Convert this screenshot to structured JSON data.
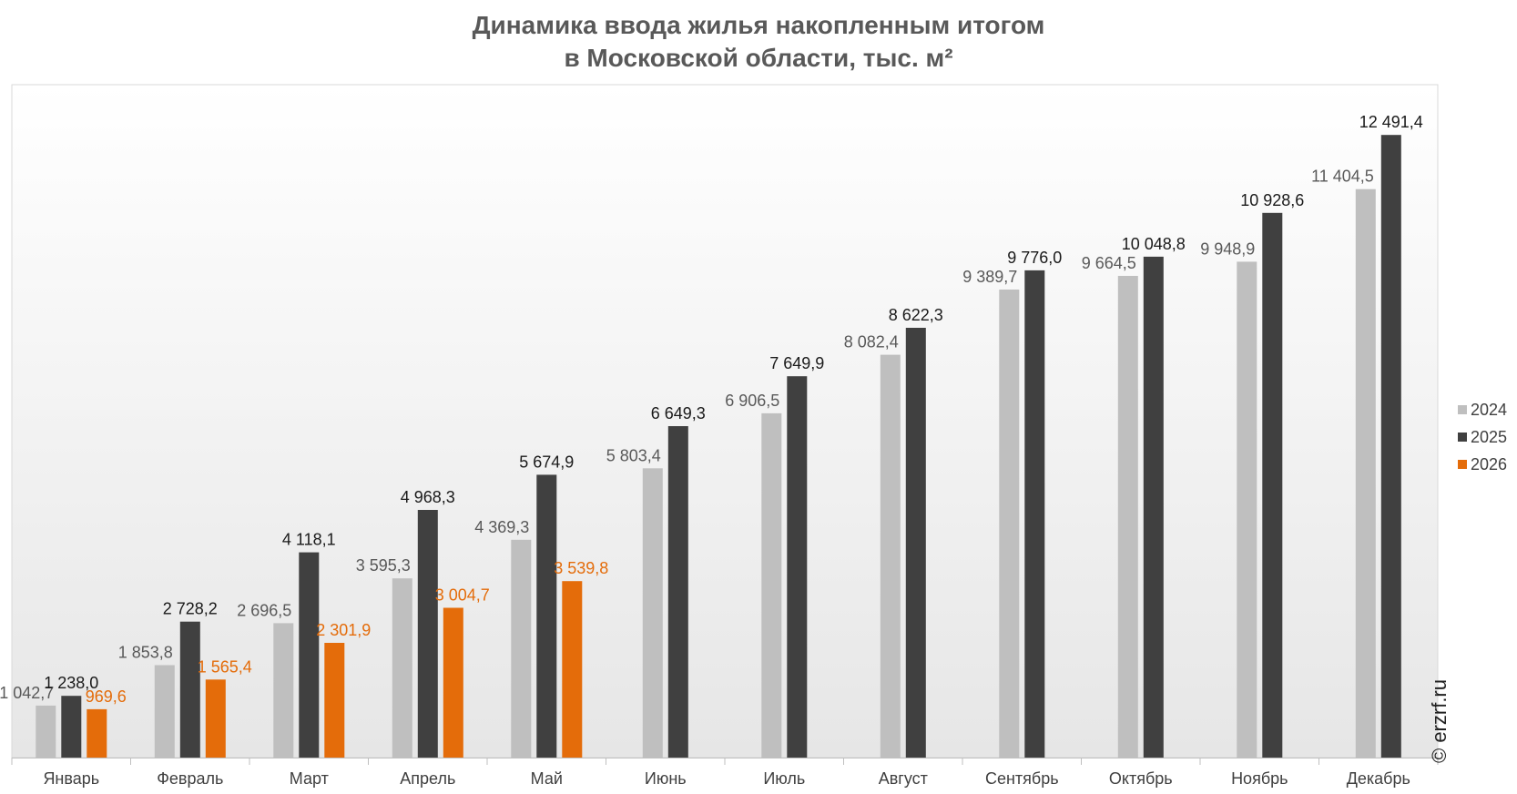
{
  "title": {
    "line1": "Динамика ввода жилья накопленным итогом",
    "line2": "в Московской области, тыс. м²"
  },
  "copyright": "© erzrf.ru",
  "chart_data": {
    "type": "bar",
    "title": "Динамика ввода жилья накопленным итогом в Московской области, тыс. м²",
    "categories": [
      "Январь",
      "Февраль",
      "Март",
      "Апрель",
      "Май",
      "Июнь",
      "Июль",
      "Август",
      "Сентябрь",
      "Октябрь",
      "Ноябрь",
      "Декабрь"
    ],
    "series": [
      {
        "name": "2024",
        "color": "#bfbfbf",
        "label_color": "#595959",
        "values": [
          1042.7,
          1853.8,
          2696.5,
          3595.3,
          4369.3,
          5803.4,
          6906.5,
          8082.4,
          9389.7,
          9664.5,
          9948.9,
          11404.5
        ],
        "labels": [
          "1 042,7",
          "1 853,8",
          "2 696,5",
          "3 595,3",
          "4 369,3",
          "5 803,4",
          "6 906,5",
          "8 082,4",
          "9 389,7",
          "9 664,5",
          "9 948,9",
          "11 404,5"
        ]
      },
      {
        "name": "2025",
        "color": "#404040",
        "label_color": "#1a1a1a",
        "values": [
          1238.0,
          2728.2,
          4118.1,
          4968.3,
          5674.9,
          6649.3,
          7649.9,
          8622.3,
          9776.0,
          10048.8,
          10928.6,
          12491.4
        ],
        "labels": [
          "1 238,0",
          "2 728,2",
          "4 118,1",
          "4 968,3",
          "5 674,9",
          "6 649,3",
          "7 649,9",
          "8 622,3",
          "9 776,0",
          "10 048,8",
          "10 928,6",
          "12 491,4"
        ]
      },
      {
        "name": "2026",
        "color": "#e46c0a",
        "label_color": "#e46c0a",
        "values": [
          969.6,
          1565.4,
          2301.9,
          3004.7,
          3539.8,
          null,
          null,
          null,
          null,
          null,
          null,
          null
        ],
        "labels": [
          "969,6",
          "1 565,4",
          "2 301,9",
          "3 004,7",
          "3 539,8",
          null,
          null,
          null,
          null,
          null,
          null,
          null
        ]
      }
    ],
    "ylim": [
      0,
      13500
    ],
    "grid": false,
    "legend_position": "right"
  }
}
